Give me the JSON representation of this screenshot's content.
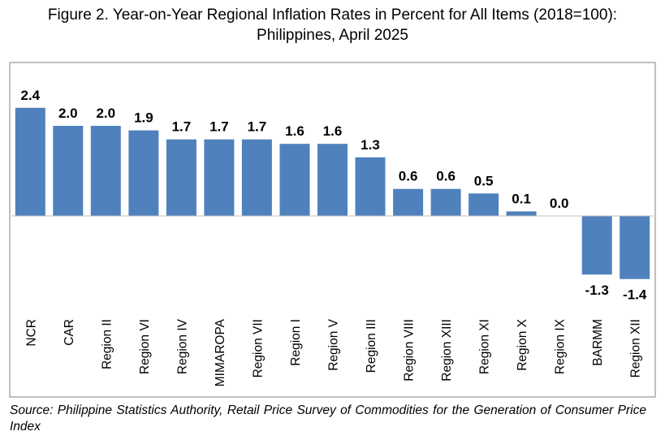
{
  "title_line1": "Figure 2. Year-on-Year Regional Inflation Rates in Percent for All Items (2018=100):",
  "title_line2": "Philippines, April 2025",
  "source_text": "Source: Philippine Statistics Authority, Retail Price Survey of Commodities for the Generation of Consumer Price Index",
  "chart_data": {
    "type": "bar",
    "categories": [
      "NCR",
      "CAR",
      "Region II",
      "Region VI",
      "Region IV",
      "MIMAROPA",
      "Region VII",
      "Region I",
      "Region V",
      "Region III",
      "Region VIII",
      "Region XIII",
      "Region XI",
      "Region X",
      "Region IX",
      "BARMM",
      "Region XII"
    ],
    "values": [
      2.4,
      2.0,
      2.0,
      1.9,
      1.7,
      1.7,
      1.7,
      1.6,
      1.6,
      1.3,
      0.6,
      0.6,
      0.5,
      0.1,
      0.0,
      -1.3,
      -1.4
    ],
    "value_labels": [
      "2.4",
      "2.0",
      "2.0",
      "1.9",
      "1.7",
      "1.7",
      "1.7",
      "1.6",
      "1.6",
      "1.3",
      "0.6",
      "0.6",
      "0.5",
      "0.1",
      "0.0",
      "-1.3",
      "-1.4"
    ],
    "bar_color": "#4f81bd",
    "grid": false,
    "legend": "none"
  }
}
